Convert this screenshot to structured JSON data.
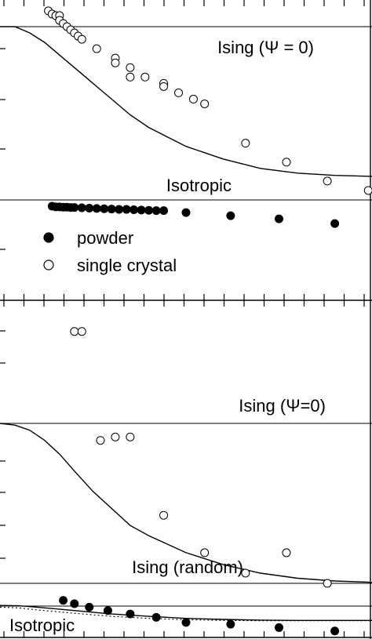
{
  "chart_data": [
    {
      "type": "scatter",
      "panel": "top",
      "xlim": [
        0,
        1
      ],
      "ylim": [
        0,
        1
      ],
      "reference_lines": [
        {
          "label": "Ising (Ψ = 0)",
          "y": 0.85
        },
        {
          "label": "Isotropic",
          "y": 0.3
        }
      ],
      "model_curve": [
        [
          0,
          0.85
        ],
        [
          0.04,
          0.85
        ],
        [
          0.08,
          0.83
        ],
        [
          0.12,
          0.8
        ],
        [
          0.16,
          0.76
        ],
        [
          0.2,
          0.72
        ],
        [
          0.25,
          0.67
        ],
        [
          0.3,
          0.62
        ],
        [
          0.35,
          0.57
        ],
        [
          0.4,
          0.53
        ],
        [
          0.5,
          0.47
        ],
        [
          0.6,
          0.43
        ],
        [
          0.7,
          0.4
        ],
        [
          0.8,
          0.385
        ],
        [
          0.9,
          0.378
        ],
        [
          1.0,
          0.375
        ]
      ],
      "legend": {
        "position": "lower-left",
        "entries": [
          {
            "label": "powder",
            "marker": "filled-circle"
          },
          {
            "label": "single crystal",
            "marker": "open-circle"
          }
        ]
      },
      "series": [
        {
          "name": "powder",
          "marker": "filled-circle",
          "points": [
            [
              0.14,
              0.28
            ],
            [
              0.15,
              0.278
            ],
            [
              0.16,
              0.278
            ],
            [
              0.17,
              0.277
            ],
            [
              0.18,
              0.277
            ],
            [
              0.19,
              0.276
            ],
            [
              0.2,
              0.276
            ],
            [
              0.22,
              0.275
            ],
            [
              0.24,
              0.274
            ],
            [
              0.26,
              0.273
            ],
            [
              0.28,
              0.272
            ],
            [
              0.3,
              0.271
            ],
            [
              0.32,
              0.27
            ],
            [
              0.34,
              0.27
            ],
            [
              0.36,
              0.269
            ],
            [
              0.38,
              0.268
            ],
            [
              0.4,
              0.267
            ],
            [
              0.42,
              0.266
            ],
            [
              0.44,
              0.266
            ],
            [
              0.5,
              0.26
            ],
            [
              0.62,
              0.25
            ],
            [
              0.75,
              0.24
            ],
            [
              0.9,
              0.225
            ]
          ]
        },
        {
          "name": "single crystal",
          "marker": "open-circle",
          "points": [
            [
              0.13,
              0.9
            ],
            [
              0.14,
              0.89
            ],
            [
              0.15,
              0.885
            ],
            [
              0.16,
              0.885
            ],
            [
              0.16,
              0.87
            ],
            [
              0.17,
              0.86
            ],
            [
              0.18,
              0.85
            ],
            [
              0.19,
              0.84
            ],
            [
              0.2,
              0.83
            ],
            [
              0.21,
              0.82
            ],
            [
              0.22,
              0.81
            ],
            [
              0.26,
              0.78
            ],
            [
              0.31,
              0.75
            ],
            [
              0.31,
              0.735
            ],
            [
              0.35,
              0.72
            ],
            [
              0.35,
              0.69
            ],
            [
              0.39,
              0.69
            ],
            [
              0.44,
              0.67
            ],
            [
              0.44,
              0.66
            ],
            [
              0.48,
              0.64
            ],
            [
              0.52,
              0.62
            ],
            [
              0.55,
              0.605
            ],
            [
              0.66,
              0.48
            ],
            [
              0.77,
              0.42
            ],
            [
              0.88,
              0.36
            ],
            [
              0.99,
              0.33
            ]
          ]
        }
      ]
    },
    {
      "type": "scatter",
      "panel": "bottom",
      "xlim": [
        0,
        1
      ],
      "ylim": [
        0,
        1
      ],
      "reference_lines": [
        {
          "label": "Ising (Ψ=0)",
          "y": 0.6
        },
        {
          "label": "Ising (random)",
          "y": 0.13
        },
        {
          "label": "Isotropic",
          "y": 0.025
        }
      ],
      "model_curves": [
        {
          "style": "solid",
          "points": [
            [
              0,
              0.6
            ],
            [
              0.04,
              0.595
            ],
            [
              0.08,
              0.58
            ],
            [
              0.12,
              0.55
            ],
            [
              0.16,
              0.51
            ],
            [
              0.2,
              0.46
            ],
            [
              0.25,
              0.4
            ],
            [
              0.3,
              0.35
            ],
            [
              0.35,
              0.3
            ],
            [
              0.4,
              0.27
            ],
            [
              0.5,
              0.22
            ],
            [
              0.6,
              0.185
            ],
            [
              0.7,
              0.16
            ],
            [
              0.8,
              0.145
            ],
            [
              0.9,
              0.137
            ],
            [
              1.0,
              0.133
            ]
          ]
        },
        {
          "style": "solid",
          "points": [
            [
              0,
              0.065
            ],
            [
              0.05,
              0.064
            ],
            [
              0.1,
              0.06
            ],
            [
              0.2,
              0.05
            ],
            [
              0.3,
              0.04
            ],
            [
              0.4,
              0.033
            ],
            [
              0.5,
              0.027
            ],
            [
              0.6,
              0.024
            ],
            [
              0.7,
              0.022
            ],
            [
              0.8,
              0.021
            ],
            [
              0.9,
              0.021
            ],
            [
              1.0,
              0.021
            ]
          ]
        },
        {
          "style": "dotted",
          "points": [
            [
              0,
              0.06
            ],
            [
              0.05,
              0.058
            ],
            [
              0.1,
              0.052
            ],
            [
              0.2,
              0.042
            ],
            [
              0.3,
              0.033
            ],
            [
              0.4,
              0.027
            ],
            [
              0.5,
              0.023
            ],
            [
              0.6,
              0.021
            ],
            [
              0.7,
              0.02
            ],
            [
              0.8,
              0.02
            ],
            [
              0.9,
              0.02
            ],
            [
              1.0,
              0.02
            ]
          ]
        }
      ],
      "series": [
        {
          "name": "powder",
          "marker": "filled-circle",
          "points": [
            [
              0.17,
              0.08
            ],
            [
              0.2,
              0.07
            ],
            [
              0.24,
              0.06
            ],
            [
              0.29,
              0.05
            ],
            [
              0.35,
              0.04
            ],
            [
              0.42,
              0.03
            ],
            [
              0.5,
              0.015
            ],
            [
              0.62,
              0.01
            ],
            [
              0.75,
              0.0
            ],
            [
              0.9,
              -0.01
            ]
          ]
        },
        {
          "name": "single crystal",
          "marker": "open-circle",
          "points": [
            [
              0.2,
              0.87
            ],
            [
              0.22,
              0.87
            ],
            [
              0.27,
              0.55
            ],
            [
              0.31,
              0.56
            ],
            [
              0.35,
              0.56
            ],
            [
              0.44,
              0.33
            ],
            [
              0.55,
              0.22
            ],
            [
              0.66,
              0.16
            ],
            [
              0.77,
              0.22
            ],
            [
              0.88,
              0.13
            ]
          ]
        }
      ]
    }
  ]
}
